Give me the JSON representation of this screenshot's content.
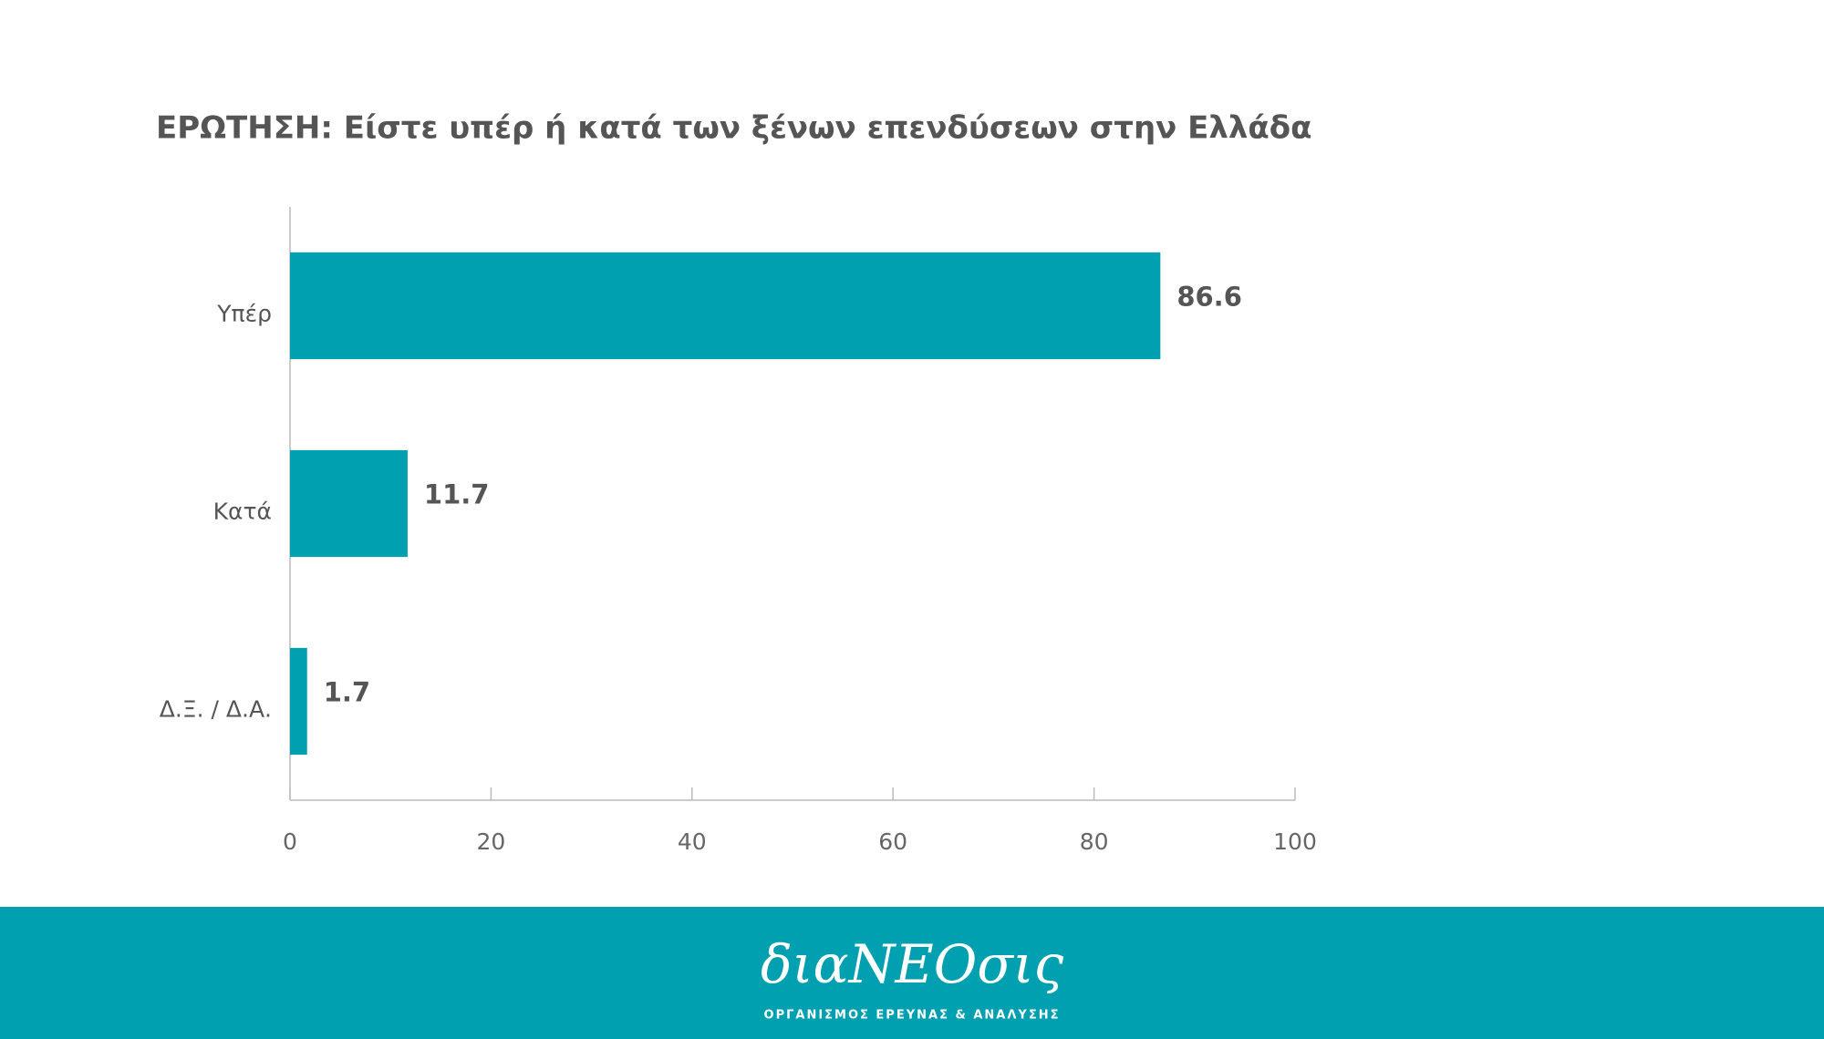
{
  "chart_data": {
    "type": "bar",
    "orientation": "horizontal",
    "title": "ΕΡΩΤΗΣΗ: Είστε υπέρ ή κατά των ξένων επενδύσεων στην Ελλάδα",
    "categories": [
      "Υπέρ",
      "Κατά",
      "Δ.Ξ. / Δ.Α."
    ],
    "values": [
      86.6,
      11.7,
      1.7
    ],
    "color": "#00a0b0",
    "xlim": [
      0,
      100
    ],
    "xticks": [
      0,
      20,
      40,
      60,
      80,
      100
    ],
    "grid": false
  },
  "footer": {
    "logo": "διαNEOσις",
    "tagline": "ΟΡΓΑΝΙΣΜΟΣ ΕΡΕΥΝΑΣ & ΑΝΑΛΥΣΗΣ"
  }
}
